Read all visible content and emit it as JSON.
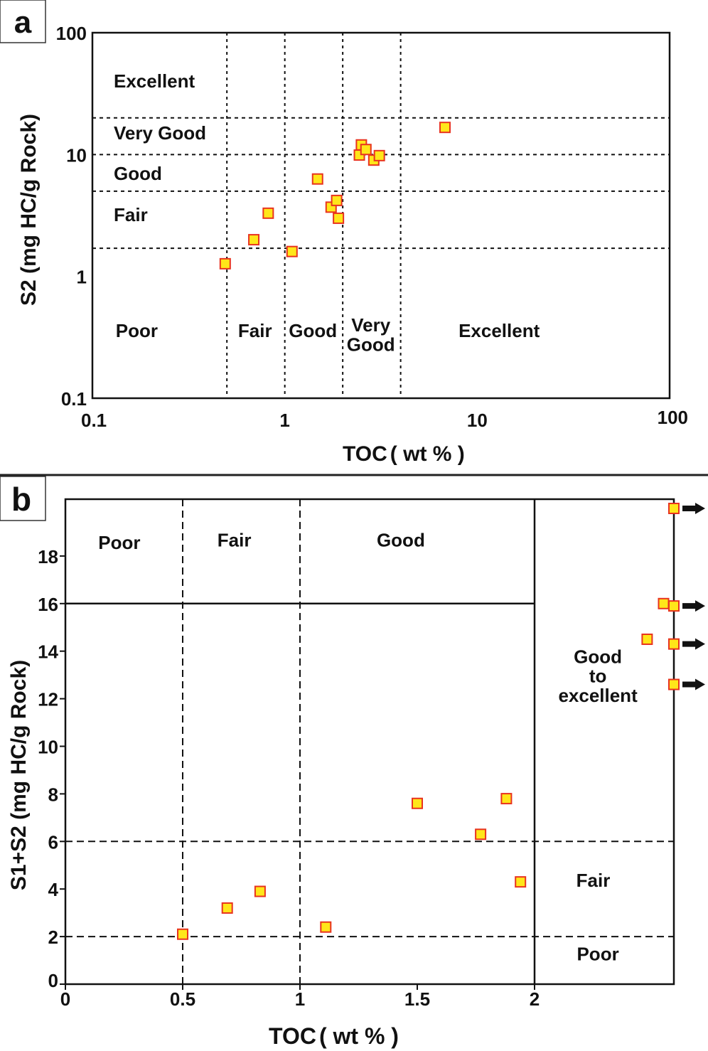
{
  "chart_data": [
    {
      "panel_label": "a",
      "type": "scatter",
      "xscale": "log",
      "yscale": "log",
      "xlabel": "TOC",
      "xlabel_unit": "( wt % )",
      "ylabel": "S2 (mg HC/g Rock)",
      "xlim": [
        0.1,
        100
      ],
      "ylim": [
        0.1,
        100
      ],
      "xticks": [
        {
          "v": 0.1,
          "label": "0.1"
        },
        {
          "v": 1,
          "label": "1"
        },
        {
          "v": 10,
          "label": "10"
        },
        {
          "v": 100,
          "label": "100"
        }
      ],
      "yticks": [
        {
          "v": 0.1,
          "label": "0.1"
        },
        {
          "v": 1,
          "label": "1"
        },
        {
          "v": 10,
          "label": "10"
        },
        {
          "v": 100,
          "label": "100"
        }
      ],
      "x_boundaries": [
        0.5,
        1,
        2,
        4
      ],
      "y_boundaries": [
        1.7,
        5,
        10,
        20
      ],
      "x_zone_labels": [
        {
          "text": "Poor",
          "x": 0.17
        },
        {
          "text": "Fair",
          "x": 0.7
        },
        {
          "text": "Good",
          "x": 1.4
        },
        {
          "text": "Very\nGood",
          "x": 2.8
        },
        {
          "text": "Excellent",
          "x": 13
        }
      ],
      "y_zone_labels": [
        {
          "text": "Excellent",
          "y": 40
        },
        {
          "text": "Very Good",
          "y": 15
        },
        {
          "text": "Good",
          "y": 7
        },
        {
          "text": "Fair",
          "y": 3.2
        }
      ],
      "marker": {
        "shape": "square",
        "fill": "#FFE619",
        "stroke": "#E8331F"
      },
      "points": [
        {
          "x": 0.49,
          "y": 1.27
        },
        {
          "x": 0.69,
          "y": 2.0
        },
        {
          "x": 0.82,
          "y": 3.3
        },
        {
          "x": 1.09,
          "y": 1.6
        },
        {
          "x": 1.48,
          "y": 6.3
        },
        {
          "x": 1.74,
          "y": 3.7
        },
        {
          "x": 1.86,
          "y": 4.2
        },
        {
          "x": 1.9,
          "y": 3.0
        },
        {
          "x": 2.44,
          "y": 9.9
        },
        {
          "x": 2.5,
          "y": 12.0
        },
        {
          "x": 2.64,
          "y": 11.0
        },
        {
          "x": 2.9,
          "y": 9.0
        },
        {
          "x": 3.1,
          "y": 9.8
        },
        {
          "x": 6.8,
          "y": 16.7
        }
      ]
    },
    {
      "panel_label": "b",
      "type": "scatter",
      "xscale": "linear",
      "yscale": "linear",
      "xlabel": "TOC",
      "xlabel_unit": "( wt % )",
      "ylabel": "S1+S2 (mg HC/g Rock)",
      "xlim": [
        0,
        2.6
      ],
      "ylim": [
        0,
        20.5
      ],
      "xticks": [
        {
          "v": 0,
          "label": "0"
        },
        {
          "v": 0.5,
          "label": "0.5"
        },
        {
          "v": 1,
          "label": "1"
        },
        {
          "v": 1.5,
          "label": "1.5"
        },
        {
          "v": 2,
          "label": "2"
        }
      ],
      "yticks": [
        {
          "v": 0,
          "label": "0"
        },
        {
          "v": 2,
          "label": "2"
        },
        {
          "v": 4,
          "label": "4"
        },
        {
          "v": 6,
          "label": "6"
        },
        {
          "v": 8,
          "label": "8"
        },
        {
          "v": 10,
          "label": "10"
        },
        {
          "v": 12,
          "label": "12"
        },
        {
          "v": 14,
          "label": "14"
        },
        {
          "v": 16,
          "label": "16"
        },
        {
          "v": 18,
          "label": "18"
        }
      ],
      "x_boundaries_dashed": [
        0.5,
        1
      ],
      "x_boundary_solid": 2,
      "y_boundaries_dashed": [
        2,
        6
      ],
      "y_boundary_solid": 16,
      "zone_labels": [
        {
          "text": "Poor",
          "x": 0.23,
          "y": 18.3
        },
        {
          "text": "Fair",
          "x": 0.72,
          "y": 18.4
        },
        {
          "text": "Good",
          "x": 1.43,
          "y": 18.4
        },
        {
          "text": "Good\nto\nexcellent",
          "x": 2.27,
          "y": 13.5
        },
        {
          "text": "Fair",
          "x": 2.25,
          "y": 4.1
        },
        {
          "text": "Poor",
          "x": 2.27,
          "y": 1.0
        }
      ],
      "marker": {
        "shape": "square",
        "fill": "#FFE619",
        "stroke": "#E8331F"
      },
      "points": [
        {
          "x": 0.5,
          "y": 2.1
        },
        {
          "x": 0.69,
          "y": 3.2
        },
        {
          "x": 0.83,
          "y": 3.9
        },
        {
          "x": 1.11,
          "y": 2.4
        },
        {
          "x": 1.5,
          "y": 7.6
        },
        {
          "x": 1.77,
          "y": 6.3
        },
        {
          "x": 1.88,
          "y": 7.8
        },
        {
          "x": 1.94,
          "y": 4.3
        },
        {
          "x": 2.48,
          "y": 14.5
        },
        {
          "x": 2.55,
          "y": 16.0
        }
      ],
      "offscale_points": [
        {
          "x_min": 2.6,
          "y": 20.0,
          "direction": "right"
        },
        {
          "x_min": 2.6,
          "y": 15.9,
          "direction": "right"
        },
        {
          "x_min": 2.6,
          "y": 14.3,
          "direction": "right"
        },
        {
          "x_min": 2.6,
          "y": 12.6,
          "direction": "right"
        }
      ]
    }
  ]
}
